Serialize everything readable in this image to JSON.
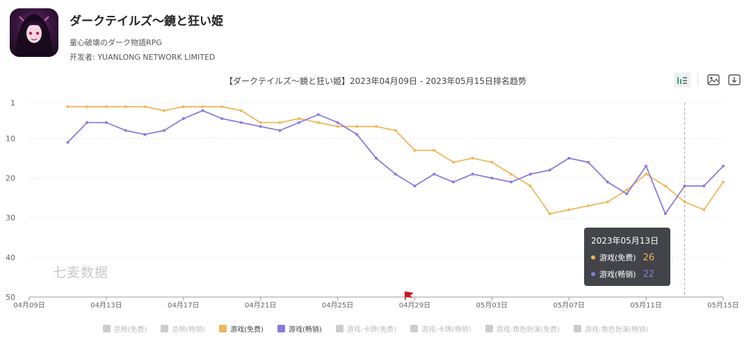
{
  "app": {
    "title": "ダークテイルズ～鏡と狂い姫",
    "subtitle": "童心破壊のダーク物語RPG",
    "developer": "开发者: YUANLONG NETWORK LIMITED"
  },
  "toolbar": {
    "icons": [
      "bar-line-toggle-icon",
      "list-icon",
      "image-save-icon",
      "download-icon"
    ]
  },
  "watermark": "七麦数据",
  "tooltip": {
    "date": "2023年05月13日",
    "rows": [
      {
        "label": "游戏(免费)",
        "value": "26",
        "color": "#f0b65a"
      },
      {
        "label": "游戏(畅销)",
        "value": "22",
        "color": "#8a7bdc"
      }
    ]
  },
  "legend": [
    {
      "label": "总榜(免费)",
      "color": "#cccccc",
      "active": false
    },
    {
      "label": "总榜(畅销)",
      "color": "#cccccc",
      "active": false
    },
    {
      "label": "游戏(免费)",
      "color": "#f0b65a",
      "active": true
    },
    {
      "label": "游戏(畅销)",
      "color": "#8a7bdc",
      "active": true
    },
    {
      "label": "游戏-卡牌(免费)",
      "color": "#cccccc",
      "active": false
    },
    {
      "label": "游戏-卡牌(畅销)",
      "color": "#cccccc",
      "active": false
    },
    {
      "label": "游戏-角色扮演(免费)",
      "color": "#cccccc",
      "active": false
    },
    {
      "label": "游戏-角色扮演(畅销)",
      "color": "#cccccc",
      "active": false
    }
  ],
  "chart_data": {
    "type": "line",
    "title": "【ダークテイルズ～鏡と狂い姫】2023年04月09日 - 2023年05月15日排名趋势",
    "y_inverted": true,
    "ylim": [
      1,
      50
    ],
    "y_ticks": [
      1,
      10,
      20,
      30,
      40,
      50
    ],
    "x_start": "04月09日",
    "x_tick_labels": [
      "04月09日",
      "04月13日",
      "04月17日",
      "04月21日",
      "04月25日",
      "04月29日",
      "05月03日",
      "05月07日",
      "05月11日",
      "05月15日"
    ],
    "grid": true,
    "hover_date": "05月13日",
    "series": [
      {
        "name": "游戏(免费)",
        "color": "#f0b65a",
        "x": [
          "04月11日",
          "04月12日",
          "04月13日",
          "04月14日",
          "04月15日",
          "04月16日",
          "04月17日",
          "04月18日",
          "04月19日",
          "04月20日",
          "04月21日",
          "04月22日",
          "04月23日",
          "04月24日",
          "04月25日",
          "04月26日",
          "04月27日",
          "04月28日",
          "04月29日",
          "04月30日",
          "05月01日",
          "05月02日",
          "05月03日",
          "05月04日",
          "05月05日",
          "05月06日",
          "05月07日",
          "05月08日",
          "05月09日",
          "05月10日",
          "05月11日",
          "05月12日",
          "05月13日",
          "05月14日",
          "05月15日"
        ],
        "values": [
          2,
          2,
          2,
          2,
          2,
          3,
          2,
          2,
          2,
          3,
          6,
          6,
          5,
          6,
          7,
          7,
          7,
          8,
          13,
          13,
          16,
          15,
          16,
          19,
          22,
          29,
          28,
          27,
          26,
          23,
          19,
          22,
          26,
          28,
          21
        ]
      },
      {
        "name": "游戏(畅销)",
        "color": "#8a7bdc",
        "x": [
          "04月11日",
          "04月12日",
          "04月13日",
          "04月14日",
          "04月15日",
          "04月16日",
          "04月17日",
          "04月18日",
          "04月19日",
          "04月20日",
          "04月21日",
          "04月22日",
          "04月23日",
          "04月24日",
          "04月25日",
          "04月26日",
          "04月27日",
          "04月28日",
          "04月29日",
          "04月30日",
          "05月01日",
          "05月02日",
          "05月03日",
          "05月04日",
          "05月05日",
          "05月06日",
          "05月07日",
          "05月08日",
          "05月09日",
          "05月10日",
          "05月11日",
          "05月12日",
          "05月13日",
          "05月14日",
          "05月15日"
        ],
        "values": [
          11,
          6,
          6,
          8,
          9,
          8,
          5,
          3,
          5,
          6,
          7,
          8,
          6,
          4,
          6,
          9,
          15,
          19,
          22,
          19,
          21,
          19,
          20,
          21,
          19,
          18,
          15,
          16,
          21,
          24,
          17,
          29,
          22,
          22,
          17
        ]
      }
    ]
  }
}
